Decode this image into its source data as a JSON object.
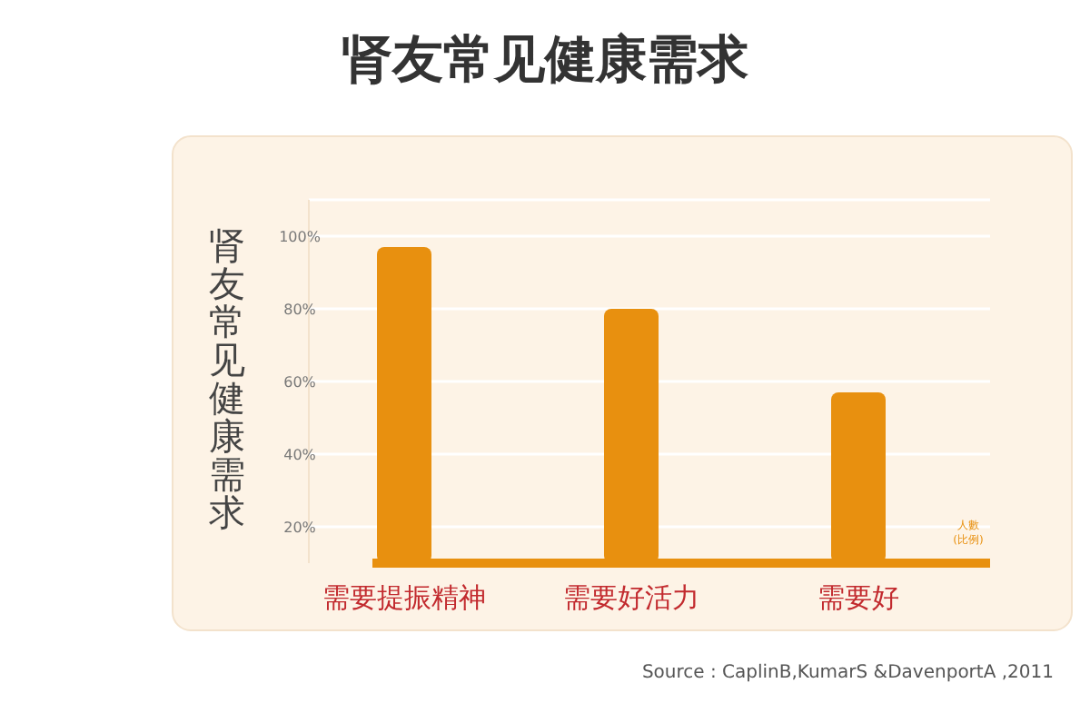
{
  "chart_data": {
    "type": "bar",
    "title": "肾友常见健康需求",
    "ylabel": "肾友常见健康需求",
    "xlabel": "人數\n(比例)",
    "categories": [
      "需要提振精神",
      "需要好活力",
      "需要好"
    ],
    "values": [
      97,
      80,
      57
    ],
    "color": "#e8900f",
    "ylim": [
      10,
      110
    ],
    "yticks": [
      {
        "value": 20,
        "label": "20%"
      },
      {
        "value": 40,
        "label": "40%"
      },
      {
        "value": 60,
        "label": "60%"
      },
      {
        "value": 80,
        "label": "80%"
      },
      {
        "value": 100,
        "label": "100%"
      }
    ],
    "grid": "y",
    "annotations": [
      "Source : CaplinB,KumarS &DavenportA ,2011"
    ]
  }
}
